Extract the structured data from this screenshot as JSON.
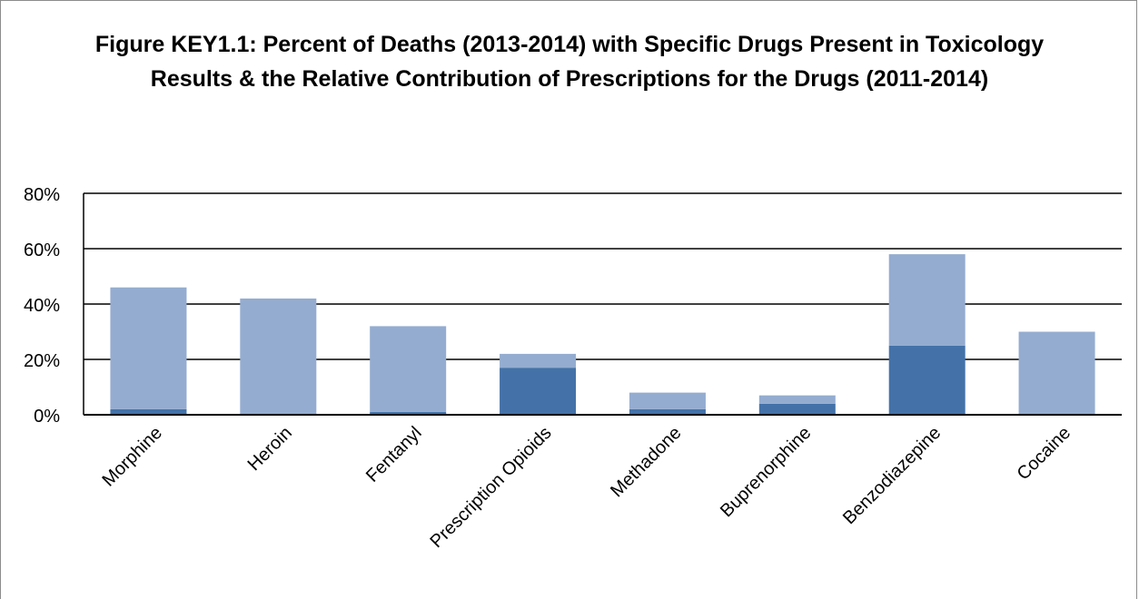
{
  "chart_data": {
    "type": "bar",
    "stacked": true,
    "title_lines": [
      "Figure KEY1.1: Percent of Deaths (2013-2014) with Specific Drugs Present in Toxicology",
      "Results & the Relative Contribution of Prescriptions for the  Drugs (2011-2014)"
    ],
    "categories": [
      "Morphine",
      "Heroin",
      "Fentanyl",
      "Prescription Opioids",
      "Methadone",
      "Buprenorphine",
      "Benzodiazepine",
      "Cocaine"
    ],
    "series": [
      {
        "values": [
          2,
          0,
          1,
          17,
          2,
          4,
          25,
          0
        ],
        "color": "#4472a8"
      },
      {
        "values": [
          44,
          42,
          31,
          5,
          6,
          3,
          33,
          30
        ],
        "color": "#94acd0"
      }
    ],
    "totals": [
      46,
      42,
      32,
      22,
      8,
      7,
      58,
      30
    ],
    "ylim": [
      0,
      80
    ],
    "yticks": [
      0,
      20,
      40,
      60,
      80
    ],
    "ytick_labels": [
      "0%",
      "20%",
      "40%",
      "60%",
      "80%"
    ],
    "grid": true,
    "legend": "none"
  }
}
